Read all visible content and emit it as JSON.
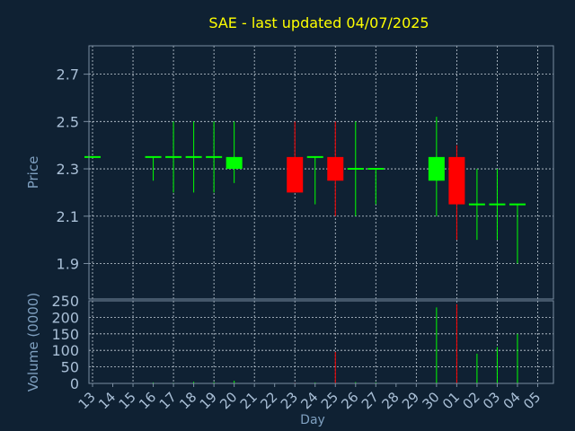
{
  "chart_data": {
    "type": "candlestick",
    "title": "SAE - last updated 04/07/2025",
    "xlabel": "Day",
    "price_panel": {
      "ylabel": "Price",
      "ylim": [
        1.75,
        2.82
      ],
      "yticks": [
        "1.9",
        "2.1",
        "2.3",
        "2.5",
        "2.7"
      ]
    },
    "volume_panel": {
      "ylabel": "Volume (0000)",
      "ylim": [
        0,
        250
      ],
      "yticks": [
        "0",
        "50",
        "100",
        "150",
        "200",
        "250"
      ]
    },
    "days": [
      "13",
      "14",
      "15",
      "16",
      "17",
      "18",
      "19",
      "20",
      "21",
      "22",
      "23",
      "24",
      "25",
      "26",
      "27",
      "28",
      "29",
      "30",
      "01",
      "02",
      "03",
      "04",
      "05"
    ],
    "candles": [
      {
        "day": "13",
        "open": 2.35,
        "high": 2.35,
        "low": 2.35,
        "close": 2.35,
        "volume": 0
      },
      {
        "day": "16",
        "open": 2.35,
        "high": 2.35,
        "low": 2.25,
        "close": 2.35,
        "volume": 3
      },
      {
        "day": "17",
        "open": 2.35,
        "high": 2.5,
        "low": 2.2,
        "close": 2.35,
        "volume": 2
      },
      {
        "day": "18",
        "open": 2.35,
        "high": 2.5,
        "low": 2.2,
        "close": 2.35,
        "volume": 5
      },
      {
        "day": "19",
        "open": 2.35,
        "high": 2.5,
        "low": 2.2,
        "close": 2.35,
        "volume": 4
      },
      {
        "day": "20",
        "open": 2.3,
        "high": 2.5,
        "low": 2.24,
        "close": 2.35,
        "volume": 8
      },
      {
        "day": "23",
        "open": 2.35,
        "high": 2.5,
        "low": 2.2,
        "close": 2.2,
        "volume": 2
      },
      {
        "day": "24",
        "open": 2.35,
        "high": 2.35,
        "low": 2.15,
        "close": 2.35,
        "volume": 3
      },
      {
        "day": "25",
        "open": 2.35,
        "high": 2.5,
        "low": 2.1,
        "close": 2.25,
        "volume": 95
      },
      {
        "day": "26",
        "open": 2.3,
        "high": 2.5,
        "low": 2.1,
        "close": 2.3,
        "volume": 4
      },
      {
        "day": "27",
        "open": 2.3,
        "high": 2.3,
        "low": 2.15,
        "close": 2.3,
        "volume": 3
      },
      {
        "day": "30",
        "open": 2.25,
        "high": 2.52,
        "low": 2.1,
        "close": 2.35,
        "volume": 230
      },
      {
        "day": "01",
        "open": 2.35,
        "high": 2.4,
        "low": 2.0,
        "close": 2.15,
        "volume": 240
      },
      {
        "day": "02",
        "open": 2.15,
        "high": 2.3,
        "low": 2.0,
        "close": 2.15,
        "volume": 90
      },
      {
        "day": "03",
        "open": 2.15,
        "high": 2.3,
        "low": 2.0,
        "close": 2.15,
        "volume": 110
      },
      {
        "day": "04",
        "open": 2.15,
        "high": 2.15,
        "low": 1.9,
        "close": 2.15,
        "volume": 150
      }
    ],
    "colors": {
      "background": "#0f2133",
      "plot_border": "#7a8da0",
      "grid": "#c7d1db",
      "title": "#ffff00",
      "label": "#7fa0c0",
      "tick_text": "#a9bfd6",
      "up": "#00ff00",
      "down": "#ff0000",
      "flat": "#00ff00"
    },
    "grid": true
  }
}
